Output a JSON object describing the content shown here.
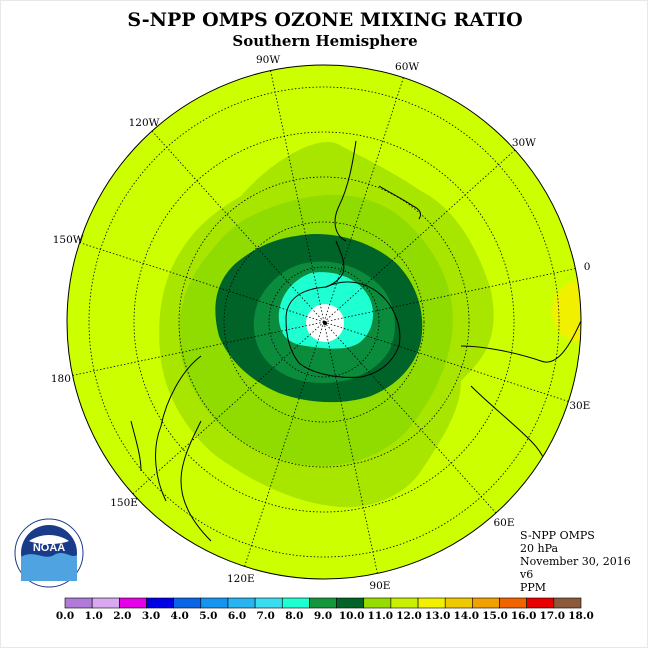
{
  "title": "S-NPP OMPS OZONE MIXING RATIO",
  "subtitle": "Southern Hemisphere",
  "info": {
    "instrument": "S-NPP OMPS",
    "pressure": "20 hPa",
    "date": "November 30, 2016",
    "version": "v6",
    "units": "PPM"
  },
  "logo": {
    "text": "NOAA",
    "ring_text": "NATIONAL OCEANIC AND ATMOSPHERIC ADMINISTRATION · U.S. DEPARTMENT OF COMMERCE"
  },
  "longitude_labels": [
    "90W",
    "60W",
    "30W",
    "0",
    "30E",
    "60E",
    "90E",
    "120E",
    "150E",
    "180",
    "150W",
    "120W"
  ],
  "colorbar": {
    "ticks": [
      "0.0",
      "1.0",
      "2.0",
      "3.0",
      "4.0",
      "5.0",
      "6.0",
      "7.0",
      "8.0",
      "9.0",
      "10.0",
      "11.0",
      "12.0",
      "13.0",
      "14.0",
      "15.0",
      "16.0",
      "17.0",
      "18.0"
    ],
    "colors": [
      "#b07ad8",
      "#d8a8f0",
      "#e600e6",
      "#0000e6",
      "#0a64e6",
      "#1496f0",
      "#28b4f0",
      "#3cdcf0",
      "#1effd2",
      "#14963c",
      "#006428",
      "#96dc00",
      "#c8f000",
      "#f0f000",
      "#f0c800",
      "#f0a000",
      "#f06400",
      "#e60000",
      "#8b5a3c"
    ]
  },
  "map_colors": {
    "background": "#ccff00",
    "band_11": "#a8e600",
    "band_10": "#90dc00",
    "band_9": "#0a8c3c",
    "band_8": "#006428",
    "band_7": "#1effd2",
    "center_hole": "#ffffff",
    "east_patch": "#f0f000"
  }
}
